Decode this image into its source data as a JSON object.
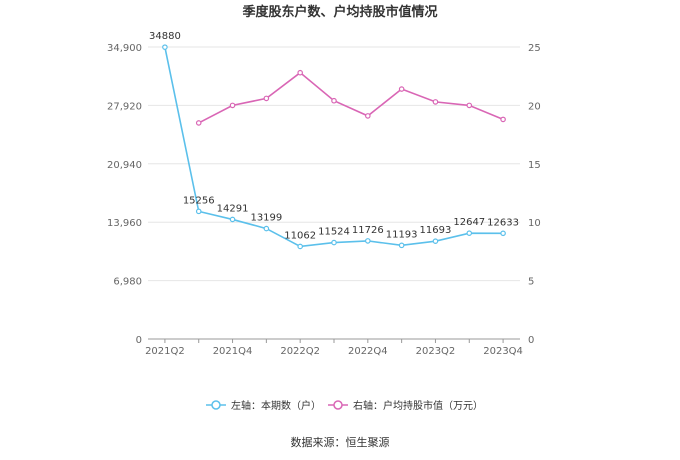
{
  "chart_data": {
    "type": "line",
    "title": "季度股东户数、户均持股市值情况",
    "categories": [
      "2021Q2",
      "2021Q3",
      "2021Q4",
      "2022Q1",
      "2022Q2",
      "2022Q3",
      "2022Q4",
      "2023Q1",
      "2023Q2",
      "2023Q3",
      "2023Q4"
    ],
    "x_tick_labels": [
      "2021Q2",
      "2021Q4",
      "2022Q2",
      "2022Q4",
      "2023Q2",
      "2023Q4"
    ],
    "left_axis": {
      "ylim": [
        0,
        34900
      ],
      "ticks": [
        "0",
        "6,980",
        "13,960",
        "20,940",
        "27,920",
        "34,900"
      ]
    },
    "right_axis": {
      "ylim": [
        0,
        25
      ],
      "ticks": [
        "0",
        "5",
        "10",
        "15",
        "20",
        "25"
      ]
    },
    "series": [
      {
        "name": "左轴：本期数（户）",
        "axis": "left",
        "color": "#5bc0eb",
        "values": [
          34880,
          15256,
          14291,
          13199,
          11062,
          11524,
          11726,
          11193,
          11693,
          12647,
          12633
        ],
        "labels": [
          "34880",
          "15256",
          "14291",
          "13199",
          "11062",
          "11524",
          "11726",
          "11193",
          "11693",
          "12647",
          "12633"
        ]
      },
      {
        "name": "右轴：户均持股市值（万元）",
        "axis": "right",
        "color": "#d966b5",
        "values": [
          null,
          18.5,
          20.0,
          20.6,
          22.8,
          20.4,
          19.1,
          21.4,
          20.3,
          20.0,
          18.8
        ]
      }
    ],
    "grid": true,
    "legend": "bottom-center",
    "source": "数据来源：恒生聚源"
  }
}
